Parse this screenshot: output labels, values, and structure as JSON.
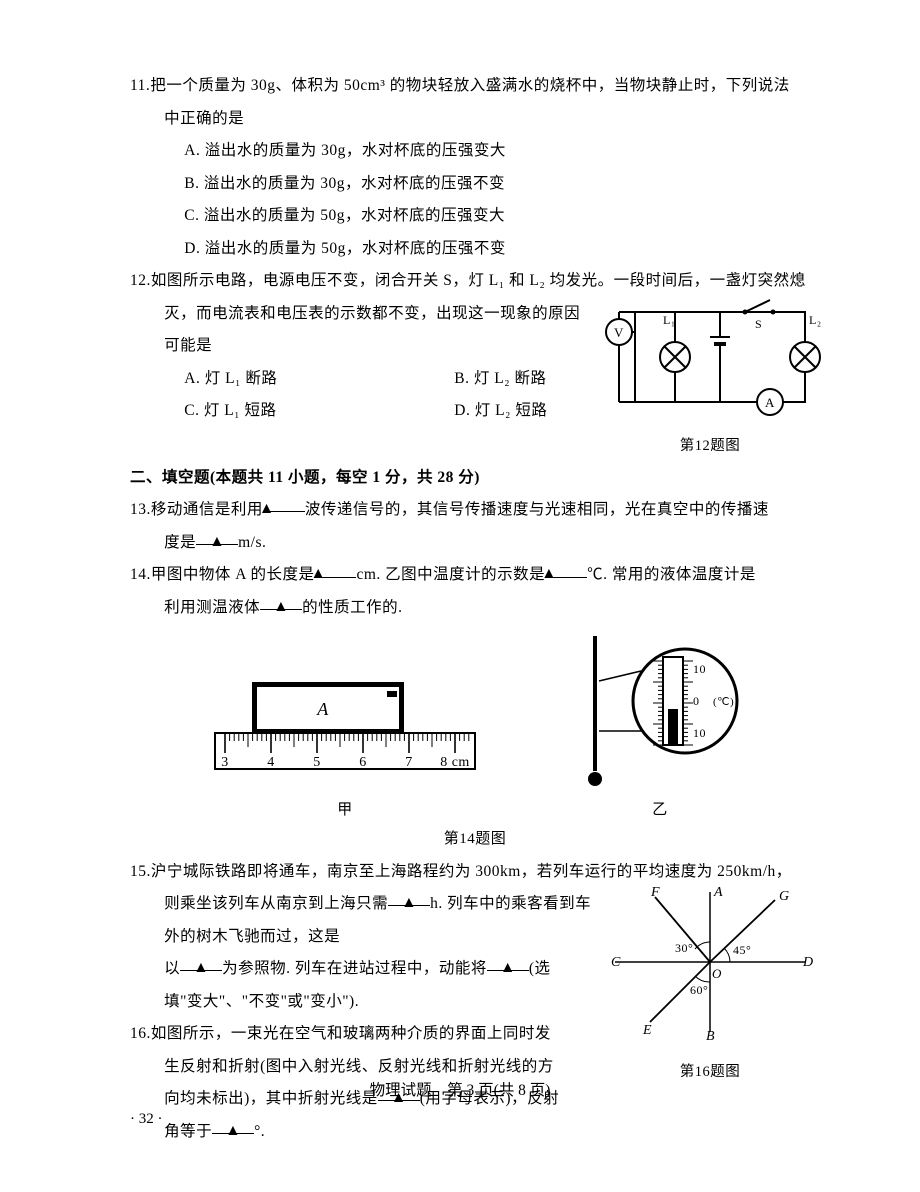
{
  "q11": {
    "num": "11.",
    "stem1": "把一个质量为 30g、体积为 50cm³ 的物块轻放入盛满水的烧杯中，当物块静止时，下列说法",
    "stem2": "中正确的是",
    "A": "A. 溢出水的质量为 30g，水对杯底的压强变大",
    "B": "B. 溢出水的质量为 30g，水对杯底的压强不变",
    "C": "C. 溢出水的质量为 50g，水对杯底的压强变大",
    "D": "D. 溢出水的质量为 50g，水对杯底的压强不变"
  },
  "q12": {
    "num": "12.",
    "stem1": "如图所示电路，电源电压不变，闭合开关 S，灯 L₁ 和 L₂ 均发光。一段时间后，一盏灯突然熄",
    "stem2": "灭，而电流表和电压表的示数都不变，出现这一现象的原因",
    "stem3": "可能是",
    "A": "A. 灯 L₁ 断路",
    "B": "B. 灯 L₂ 断路",
    "C": "C. 灯 L₁ 短路",
    "D": "D. 灯 L₂ 短路",
    "caption": "第12题图",
    "circuit": {
      "V": "V",
      "A": "A",
      "L1": "L₁",
      "L2": "L₂",
      "S": "S"
    }
  },
  "section2": "二、填空题(本题共 11 小题，每空 1 分，共 28 分)",
  "q13": {
    "num": "13.",
    "t1": "移动通信是利用",
    "t2": "波传递信号的，其信号传播速度与光速相同，光在真空中的传播速",
    "t3": "度是",
    "t4": "m/s."
  },
  "q14": {
    "num": "14.",
    "t1": "甲图中物体 A 的长度是",
    "t2": "cm. 乙图中温度计的示数是",
    "t3": "℃. 常用的液体温度计是",
    "t4": "利用测温液体",
    "t5": "的性质工作的.",
    "ruler_ticks": [
      "3",
      "4",
      "5",
      "6",
      "7",
      "8 cm"
    ],
    "A_label": "A",
    "jia": "甲",
    "yi": "乙",
    "caption": "第14题图",
    "therm_marks": [
      "10",
      "0",
      "10"
    ],
    "therm_unit": "(℃)"
  },
  "q15": {
    "num": "15.",
    "t1": "沪宁城际铁路即将通车，南京至上海路程约为 300km，若列车运行的平均速度为 250km/h，",
    "t2": "则乘坐该列车从南京到上海只需",
    "t3": "h. 列车中的乘客看到车外的树木飞驰而过，这是",
    "t4": "以",
    "t5": "为参照物. 列车在进站过程中，动能将",
    "t6": "(选",
    "t7": "填\"变大\"、\"不变\"或\"变小\")."
  },
  "q16": {
    "num": "16.",
    "t1": "如图所示，一束光在空气和玻璃两种介质的界面上同时发",
    "t2": "生反射和折射(图中入射光线、反射光线和折射光线的方",
    "t3": "向均未标出)，其中折射光线是",
    "t4": "(用字母表示)，反射",
    "t5": "角等于",
    "t6": "°.",
    "caption": "第16题图",
    "labels": {
      "F": "F",
      "A": "A",
      "G": "G",
      "C": "C",
      "O": "O",
      "D": "D",
      "E": "E",
      "B": "B",
      "a30": "30°",
      "a45": "45°",
      "a60": "60°"
    }
  },
  "triangle": "▲",
  "footer_main": "物理试题　第 3 页(共 8 页)",
  "footer_pg": "· 32 ·"
}
